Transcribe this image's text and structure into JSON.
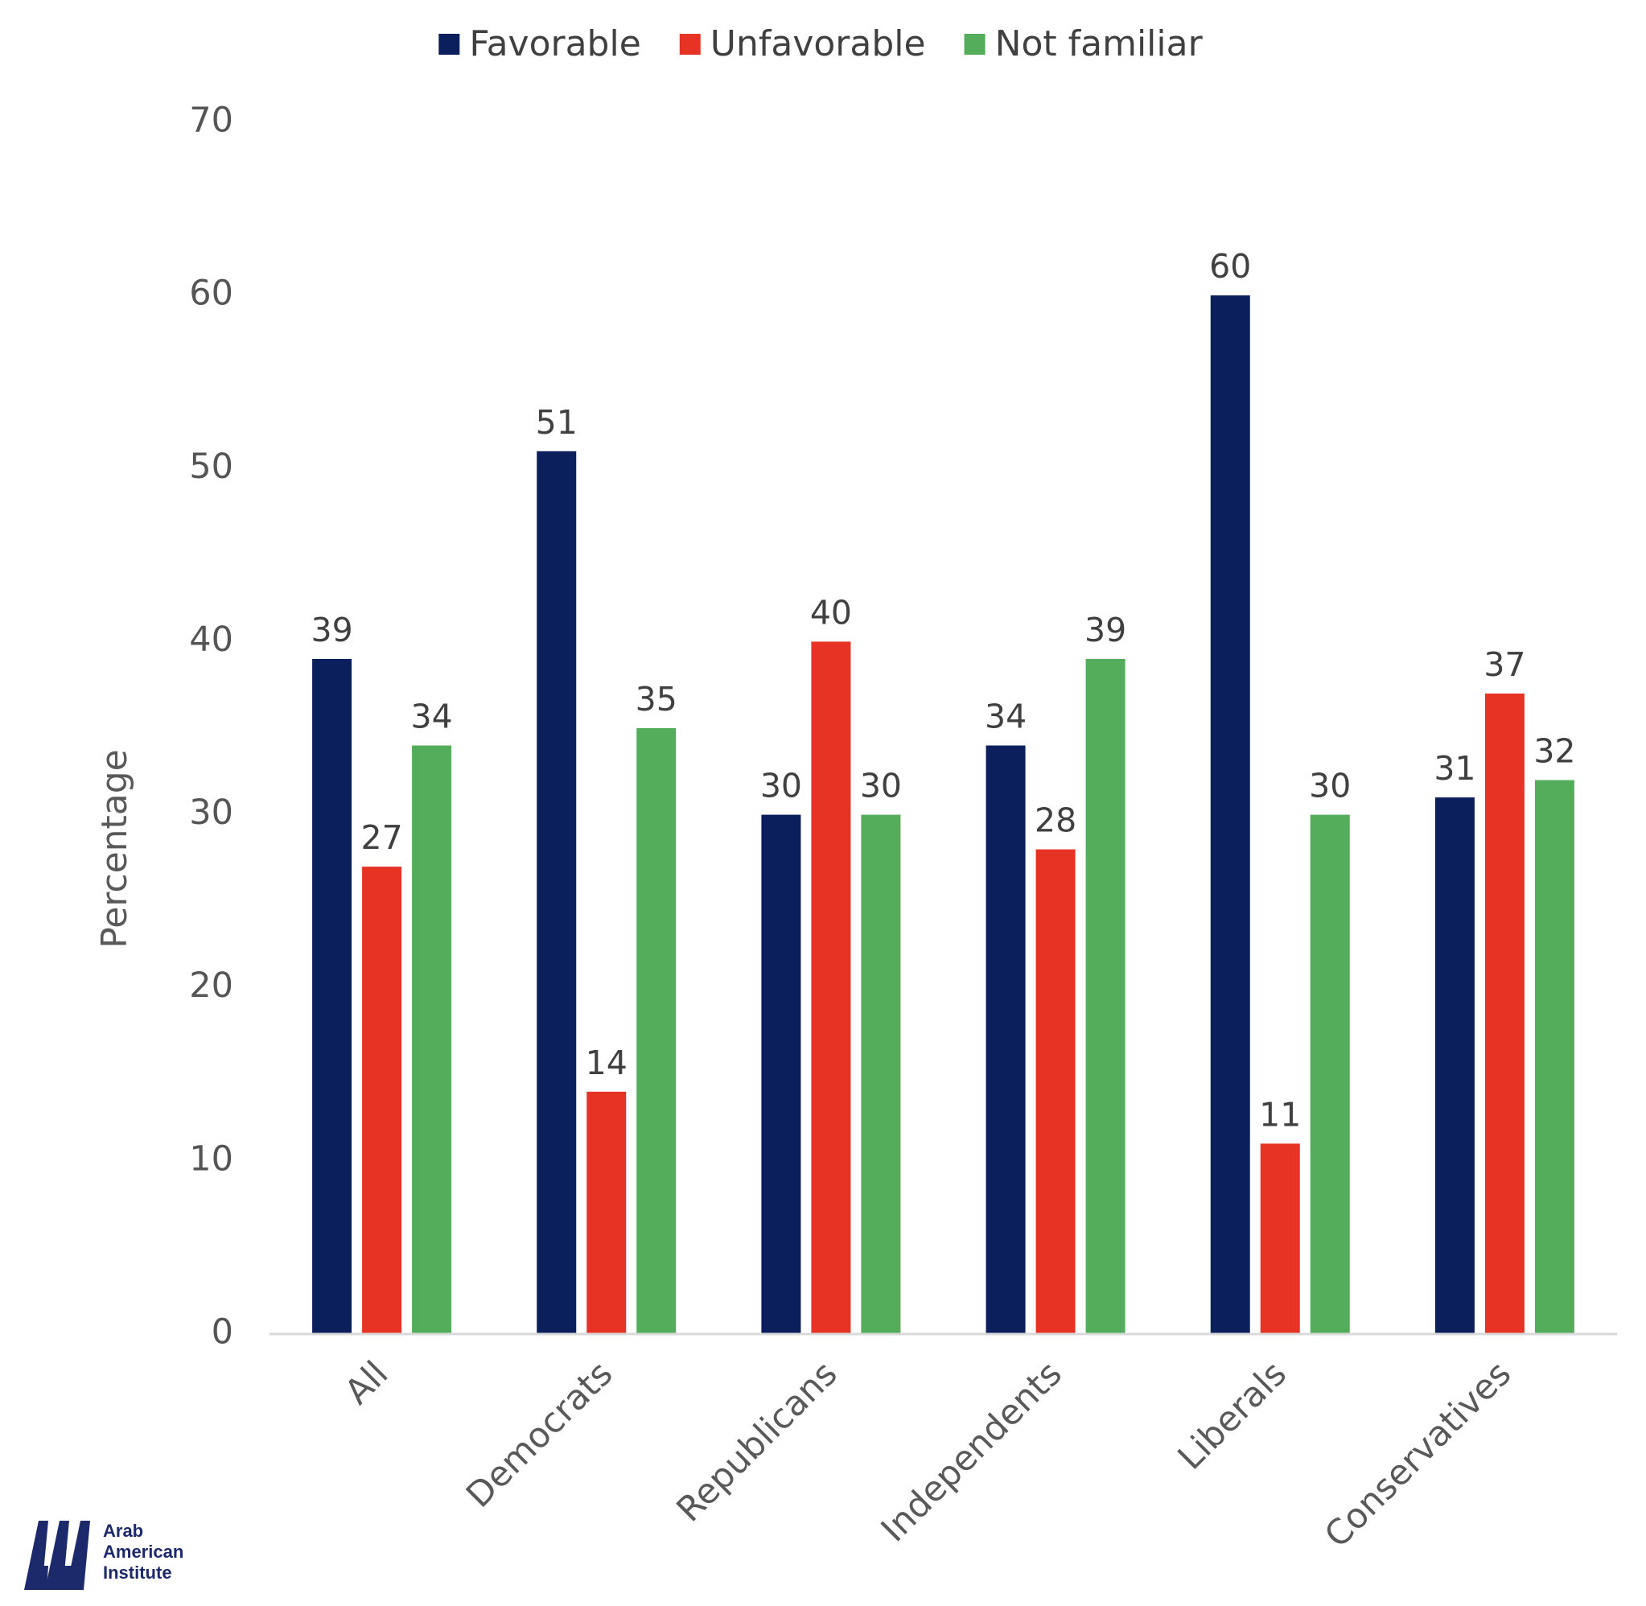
{
  "chart_data": {
    "type": "bar",
    "title": "",
    "xlabel": "",
    "ylabel": "Percentage",
    "ylim": [
      0,
      70
    ],
    "yticks": [
      0,
      10,
      20,
      30,
      40,
      50,
      60,
      70
    ],
    "grid": false,
    "legend_position": "top-center",
    "categories": [
      "All",
      "Democrats",
      "Republicans",
      "Independents",
      "Liberals",
      "Conservatives"
    ],
    "series": [
      {
        "name": "Favorable",
        "color": "#0b1f5c",
        "values": [
          39,
          51,
          30,
          34,
          60,
          31
        ]
      },
      {
        "name": "Unfavorable",
        "color": "#e63323",
        "values": [
          27,
          14,
          40,
          28,
          11,
          37
        ]
      },
      {
        "name": "Not familiar",
        "color": "#53ad5a",
        "values": [
          34,
          35,
          30,
          39,
          30,
          32
        ]
      }
    ]
  },
  "logo": {
    "lines": [
      "Arab",
      "American",
      "Institute"
    ],
    "color": "#1c2a6b"
  }
}
